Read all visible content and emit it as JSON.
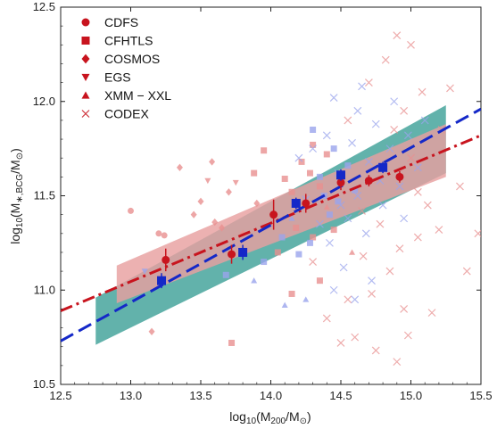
{
  "chart_data": {
    "type": "scatter",
    "xlabel": "log10(M200/M⊙)",
    "ylabel": "log10(M∗,BCG/M⊙)",
    "xlim": [
      12.5,
      15.5
    ],
    "ylim": [
      10.5,
      12.5
    ],
    "xticks": [
      "12.5",
      "13.0",
      "13.5",
      "14.0",
      "14.5",
      "15.0",
      "15.5"
    ],
    "yticks": [
      "10.5",
      "11.0",
      "11.5",
      "12.0",
      "12.5"
    ],
    "legend": {
      "placement": "top-left",
      "entries": [
        {
          "label": "CDFS",
          "marker": "circle"
        },
        {
          "label": "CFHTLS",
          "marker": "square"
        },
        {
          "label": "COSMOS",
          "marker": "diamond"
        },
        {
          "label": "EGS",
          "marker": "triangle-down"
        },
        {
          "label": "XMM − XXL",
          "marker": "triangle-up"
        },
        {
          "label": "CODEX",
          "marker": "x"
        }
      ]
    },
    "colors": {
      "red": "#c8141e",
      "blue": "#1428c8",
      "red_band": "#e8a0a0",
      "teal_band": "#5aaea6",
      "scatter_red": "#e89090",
      "scatter_blue": "#9aa4ec"
    },
    "fit_lines": [
      {
        "color": "red",
        "style": "dash-dot",
        "points": [
          [
            12.5,
            10.89
          ],
          [
            15.5,
            11.82
          ]
        ]
      },
      {
        "color": "blue",
        "style": "dashed",
        "points": [
          [
            12.5,
            10.73
          ],
          [
            15.5,
            11.96
          ]
        ]
      }
    ],
    "confidence_bands": [
      {
        "color": "teal",
        "upper": [
          [
            12.75,
            10.96
          ],
          [
            15.25,
            11.98
          ]
        ],
        "lower": [
          [
            12.75,
            10.71
          ],
          [
            15.25,
            11.62
          ]
        ]
      },
      {
        "color": "red",
        "upper": [
          [
            12.9,
            11.13
          ],
          [
            15.25,
            11.88
          ]
        ],
        "lower": [
          [
            12.9,
            10.93
          ],
          [
            15.25,
            11.6
          ]
        ]
      }
    ],
    "binned_series": [
      {
        "color": "red",
        "marker": "circle",
        "points": [
          {
            "x": 13.25,
            "y": 11.16,
            "err": 0.06
          },
          {
            "x": 13.72,
            "y": 11.19,
            "err": 0.05
          },
          {
            "x": 14.02,
            "y": 11.4,
            "err": 0.08
          },
          {
            "x": 14.25,
            "y": 11.46,
            "err": 0.05
          },
          {
            "x": 14.5,
            "y": 11.57,
            "err": 0.04
          },
          {
            "x": 14.7,
            "y": 11.58,
            "err": 0.03
          },
          {
            "x": 14.92,
            "y": 11.6,
            "err": 0.03
          }
        ]
      },
      {
        "color": "blue",
        "marker": "square",
        "points": [
          {
            "x": 13.22,
            "y": 11.05,
            "err": 0.04
          },
          {
            "x": 13.8,
            "y": 11.2,
            "err": 0.04
          },
          {
            "x": 14.18,
            "y": 11.46,
            "err": 0.03
          },
          {
            "x": 14.5,
            "y": 11.61,
            "err": 0.03
          },
          {
            "x": 14.8,
            "y": 11.65,
            "err": 0.03
          }
        ]
      }
    ],
    "scatter_points": [
      {
        "x": 13.2,
        "y": 11.3,
        "marker": "circle",
        "color": "red"
      },
      {
        "x": 13.24,
        "y": 11.29,
        "marker": "circle",
        "color": "red"
      },
      {
        "x": 13.15,
        "y": 10.78,
        "marker": "diamond",
        "color": "red"
      },
      {
        "x": 13.58,
        "y": 11.68,
        "marker": "diamond",
        "color": "red"
      },
      {
        "x": 13.5,
        "y": 11.47,
        "marker": "diamond",
        "color": "red"
      },
      {
        "x": 13.45,
        "y": 11.4,
        "marker": "diamond",
        "color": "red"
      },
      {
        "x": 13.6,
        "y": 11.36,
        "marker": "diamond",
        "color": "red"
      },
      {
        "x": 13.7,
        "y": 11.52,
        "marker": "diamond",
        "color": "red"
      },
      {
        "x": 13.65,
        "y": 11.33,
        "marker": "diamond",
        "color": "red"
      },
      {
        "x": 13.8,
        "y": 11.3,
        "marker": "diamond",
        "color": "red"
      },
      {
        "x": 13.9,
        "y": 11.46,
        "marker": "diamond",
        "color": "red"
      },
      {
        "x": 13.55,
        "y": 11.58,
        "marker": "triangle-down",
        "color": "red"
      },
      {
        "x": 13.75,
        "y": 11.57,
        "marker": "triangle-down",
        "color": "red"
      },
      {
        "x": 13.88,
        "y": 11.62,
        "marker": "square",
        "color": "red"
      },
      {
        "x": 13.95,
        "y": 11.74,
        "marker": "square",
        "color": "red"
      },
      {
        "x": 14.1,
        "y": 11.59,
        "marker": "square",
        "color": "red"
      },
      {
        "x": 14.15,
        "y": 11.52,
        "marker": "square",
        "color": "red"
      },
      {
        "x": 14.22,
        "y": 11.68,
        "marker": "square",
        "color": "red"
      },
      {
        "x": 14.28,
        "y": 11.62,
        "marker": "square",
        "color": "red"
      },
      {
        "x": 14.35,
        "y": 11.55,
        "marker": "square",
        "color": "red"
      },
      {
        "x": 14.4,
        "y": 11.72,
        "marker": "square",
        "color": "red"
      },
      {
        "x": 14.45,
        "y": 11.32,
        "marker": "square",
        "color": "red"
      },
      {
        "x": 14.3,
        "y": 11.28,
        "marker": "square",
        "color": "red"
      },
      {
        "x": 14.18,
        "y": 11.33,
        "marker": "square",
        "color": "red"
      },
      {
        "x": 14.05,
        "y": 11.2,
        "marker": "square",
        "color": "red"
      },
      {
        "x": 14.15,
        "y": 10.98,
        "marker": "square",
        "color": "red"
      },
      {
        "x": 13.72,
        "y": 10.72,
        "marker": "square",
        "color": "red"
      },
      {
        "x": 14.3,
        "y": 11.77,
        "marker": "square",
        "color": "red"
      },
      {
        "x": 14.4,
        "y": 11.44,
        "marker": "triangle-up",
        "color": "red"
      },
      {
        "x": 14.35,
        "y": 11.05,
        "marker": "square",
        "color": "red"
      },
      {
        "x": 14.58,
        "y": 11.2,
        "marker": "triangle-up",
        "color": "red"
      },
      {
        "x": 13.0,
        "y": 11.42,
        "marker": "circle",
        "color": "red"
      },
      {
        "x": 13.35,
        "y": 11.65,
        "marker": "diamond",
        "color": "red"
      },
      {
        "x": 13.95,
        "y": 11.15,
        "marker": "square",
        "color": "blue"
      },
      {
        "x": 14.08,
        "y": 11.28,
        "marker": "square",
        "color": "blue"
      },
      {
        "x": 14.2,
        "y": 11.19,
        "marker": "square",
        "color": "blue"
      },
      {
        "x": 14.28,
        "y": 11.25,
        "marker": "square",
        "color": "blue"
      },
      {
        "x": 14.42,
        "y": 11.4,
        "marker": "square",
        "color": "blue"
      },
      {
        "x": 14.38,
        "y": 11.5,
        "marker": "square",
        "color": "blue"
      },
      {
        "x": 14.48,
        "y": 11.47,
        "marker": "square",
        "color": "blue"
      },
      {
        "x": 14.35,
        "y": 11.6,
        "marker": "square",
        "color": "blue"
      },
      {
        "x": 14.55,
        "y": 11.66,
        "marker": "square",
        "color": "blue"
      },
      {
        "x": 14.1,
        "y": 10.92,
        "marker": "triangle-up",
        "color": "blue"
      },
      {
        "x": 14.25,
        "y": 10.95,
        "marker": "triangle-up",
        "color": "blue"
      },
      {
        "x": 13.88,
        "y": 11.05,
        "marker": "triangle-up",
        "color": "blue"
      },
      {
        "x": 14.15,
        "y": 11.38,
        "marker": "triangle-up",
        "color": "blue"
      },
      {
        "x": 13.68,
        "y": 11.08,
        "marker": "square",
        "color": "blue"
      },
      {
        "x": 14.45,
        "y": 11.75,
        "marker": "square",
        "color": "blue"
      },
      {
        "x": 14.6,
        "y": 11.53,
        "marker": "square",
        "color": "blue"
      },
      {
        "x": 13.1,
        "y": 11.1,
        "marker": "triangle-down",
        "color": "blue"
      },
      {
        "x": 14.3,
        "y": 11.85,
        "marker": "square",
        "color": "blue"
      },
      {
        "x": 14.65,
        "y": 11.42,
        "marker": "x",
        "color": "red"
      },
      {
        "x": 14.78,
        "y": 11.35,
        "marker": "x",
        "color": "red"
      },
      {
        "x": 14.92,
        "y": 11.22,
        "marker": "x",
        "color": "red"
      },
      {
        "x": 14.85,
        "y": 11.1,
        "marker": "x",
        "color": "red"
      },
      {
        "x": 14.72,
        "y": 10.98,
        "marker": "x",
        "color": "red"
      },
      {
        "x": 14.95,
        "y": 10.9,
        "marker": "x",
        "color": "red"
      },
      {
        "x": 15.05,
        "y": 11.28,
        "marker": "x",
        "color": "red"
      },
      {
        "x": 15.12,
        "y": 11.45,
        "marker": "x",
        "color": "red"
      },
      {
        "x": 15.0,
        "y": 11.7,
        "marker": "x",
        "color": "red"
      },
      {
        "x": 14.88,
        "y": 11.85,
        "marker": "x",
        "color": "red"
      },
      {
        "x": 15.08,
        "y": 12.05,
        "marker": "x",
        "color": "red"
      },
      {
        "x": 14.7,
        "y": 12.1,
        "marker": "x",
        "color": "red"
      },
      {
        "x": 14.82,
        "y": 12.22,
        "marker": "x",
        "color": "red"
      },
      {
        "x": 15.0,
        "y": 12.3,
        "marker": "x",
        "color": "red"
      },
      {
        "x": 15.28,
        "y": 12.07,
        "marker": "x",
        "color": "red"
      },
      {
        "x": 15.35,
        "y": 11.55,
        "marker": "x",
        "color": "red"
      },
      {
        "x": 15.22,
        "y": 11.85,
        "marker": "x",
        "color": "red"
      },
      {
        "x": 15.4,
        "y": 11.1,
        "marker": "x",
        "color": "red"
      },
      {
        "x": 14.55,
        "y": 10.95,
        "marker": "x",
        "color": "red"
      },
      {
        "x": 14.6,
        "y": 10.75,
        "marker": "x",
        "color": "red"
      },
      {
        "x": 14.75,
        "y": 10.68,
        "marker": "x",
        "color": "red"
      },
      {
        "x": 14.9,
        "y": 10.62,
        "marker": "x",
        "color": "red"
      },
      {
        "x": 14.98,
        "y": 10.76,
        "marker": "x",
        "color": "red"
      },
      {
        "x": 15.15,
        "y": 10.88,
        "marker": "x",
        "color": "red"
      },
      {
        "x": 14.5,
        "y": 10.72,
        "marker": "x",
        "color": "red"
      },
      {
        "x": 14.4,
        "y": 10.85,
        "marker": "x",
        "color": "red"
      },
      {
        "x": 14.66,
        "y": 11.18,
        "marker": "x",
        "color": "red"
      },
      {
        "x": 14.3,
        "y": 11.15,
        "marker": "x",
        "color": "red"
      },
      {
        "x": 15.05,
        "y": 11.52,
        "marker": "x",
        "color": "red"
      },
      {
        "x": 15.2,
        "y": 11.32,
        "marker": "x",
        "color": "red"
      },
      {
        "x": 14.9,
        "y": 12.35,
        "marker": "x",
        "color": "red"
      },
      {
        "x": 14.55,
        "y": 11.9,
        "marker": "x",
        "color": "red"
      },
      {
        "x": 14.95,
        "y": 11.95,
        "marker": "x",
        "color": "red"
      },
      {
        "x": 15.48,
        "y": 11.3,
        "marker": "x",
        "color": "red"
      },
      {
        "x": 14.42,
        "y": 11.25,
        "marker": "x",
        "color": "blue"
      },
      {
        "x": 14.55,
        "y": 11.38,
        "marker": "x",
        "color": "blue"
      },
      {
        "x": 14.62,
        "y": 11.5,
        "marker": "x",
        "color": "blue"
      },
      {
        "x": 14.48,
        "y": 11.62,
        "marker": "x",
        "color": "blue"
      },
      {
        "x": 14.7,
        "y": 11.68,
        "marker": "x",
        "color": "blue"
      },
      {
        "x": 14.58,
        "y": 11.78,
        "marker": "x",
        "color": "blue"
      },
      {
        "x": 14.4,
        "y": 11.82,
        "marker": "x",
        "color": "blue"
      },
      {
        "x": 14.75,
        "y": 11.88,
        "marker": "x",
        "color": "blue"
      },
      {
        "x": 14.62,
        "y": 11.95,
        "marker": "x",
        "color": "blue"
      },
      {
        "x": 14.85,
        "y": 11.75,
        "marker": "x",
        "color": "blue"
      },
      {
        "x": 14.92,
        "y": 11.55,
        "marker": "x",
        "color": "blue"
      },
      {
        "x": 14.8,
        "y": 11.45,
        "marker": "x",
        "color": "blue"
      },
      {
        "x": 14.68,
        "y": 11.3,
        "marker": "x",
        "color": "blue"
      },
      {
        "x": 14.52,
        "y": 11.12,
        "marker": "x",
        "color": "blue"
      },
      {
        "x": 14.35,
        "y": 11.35,
        "marker": "x",
        "color": "blue"
      },
      {
        "x": 14.2,
        "y": 11.7,
        "marker": "x",
        "color": "blue"
      },
      {
        "x": 14.25,
        "y": 11.48,
        "marker": "x",
        "color": "blue"
      },
      {
        "x": 14.98,
        "y": 11.82,
        "marker": "x",
        "color": "blue"
      },
      {
        "x": 15.05,
        "y": 11.65,
        "marker": "x",
        "color": "blue"
      },
      {
        "x": 14.45,
        "y": 12.02,
        "marker": "x",
        "color": "blue"
      },
      {
        "x": 14.65,
        "y": 12.08,
        "marker": "x",
        "color": "blue"
      },
      {
        "x": 14.88,
        "y": 12.0,
        "marker": "x",
        "color": "blue"
      },
      {
        "x": 14.72,
        "y": 11.05,
        "marker": "x",
        "color": "blue"
      },
      {
        "x": 14.6,
        "y": 10.95,
        "marker": "x",
        "color": "blue"
      },
      {
        "x": 14.45,
        "y": 11.0,
        "marker": "x",
        "color": "blue"
      },
      {
        "x": 15.1,
        "y": 11.9,
        "marker": "x",
        "color": "blue"
      },
      {
        "x": 14.3,
        "y": 11.75,
        "marker": "x",
        "color": "blue"
      },
      {
        "x": 14.78,
        "y": 11.58,
        "marker": "x",
        "color": "blue"
      },
      {
        "x": 14.5,
        "y": 11.45,
        "marker": "x",
        "color": "blue"
      },
      {
        "x": 14.95,
        "y": 11.38,
        "marker": "x",
        "color": "blue"
      }
    ]
  }
}
